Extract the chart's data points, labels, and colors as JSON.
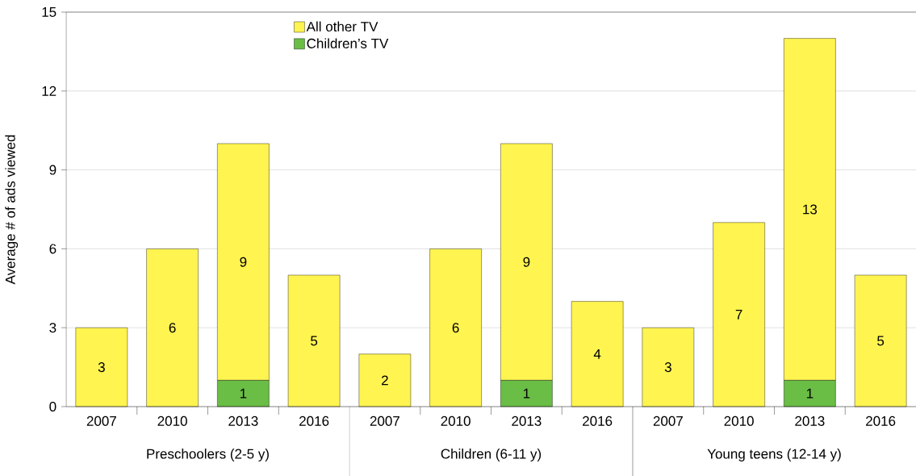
{
  "chart_data": {
    "type": "bar",
    "stacked": true,
    "categories": [
      "2007",
      "2010",
      "2013",
      "2016",
      "2007",
      "2010",
      "2013",
      "2016",
      "2007",
      "2010",
      "2013",
      "2016"
    ],
    "ylabel": "Average # of ads viewed",
    "ylim": [
      0,
      15
    ],
    "yticks": [
      0,
      3,
      6,
      9,
      12,
      15
    ],
    "grid": "y",
    "legend": "top",
    "data_labels": true,
    "annotations": [
      "Preschoolers (2-5 y)",
      "Children (6-11 y)",
      "Young teens (12-14 y)"
    ],
    "series": [
      {
        "name": "Children’s TV",
        "color": "#6abd45",
        "values": [
          null,
          null,
          1,
          null,
          null,
          null,
          1,
          null,
          null,
          null,
          1,
          null
        ]
      },
      {
        "name": "All other TV",
        "color": "#fff450",
        "values": [
          3,
          6,
          9,
          5,
          2,
          6,
          9,
          4,
          3,
          7,
          13,
          5
        ]
      }
    ]
  }
}
